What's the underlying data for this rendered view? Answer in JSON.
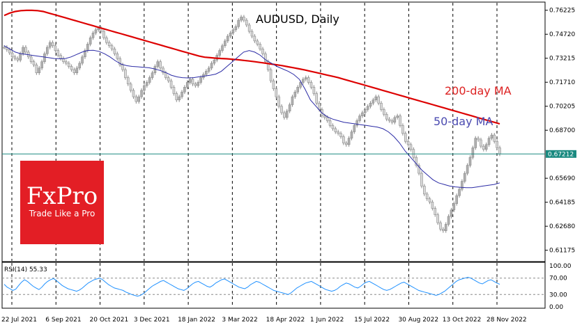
{
  "chart_data": {
    "type": "line",
    "title": "AUDUSD, Daily",
    "x_tick_labels": [
      "22 Jul 2021",
      "6 Sep 2021",
      "20 Oct 2021",
      "3 Dec 2021",
      "18 Jan 2022",
      "3 Mar 2022",
      "18 Apr 2022",
      "1 Jun 2022",
      "15 Jul 2022",
      "30 Aug 2022",
      "13 Oct 2022",
      "28 Nov 2022"
    ],
    "y_tick_labels": [
      "0.76225",
      "0.74720",
      "0.73215",
      "0.71710",
      "0.70205",
      "0.68700",
      "0.67212",
      "0.65690",
      "0.64185",
      "0.62680",
      "0.61175"
    ],
    "ylim": [
      0.6055,
      0.7665
    ],
    "current_price": "0.67212",
    "annotations": {
      "ma200": "200-day MA",
      "ma50": "50-day MA"
    },
    "series": [
      {
        "name": "AUDUSD",
        "color": "#7f7f7f",
        "values": [
          0.739,
          0.7375,
          0.7355,
          0.733,
          0.732,
          0.731,
          0.735,
          0.739,
          0.736,
          0.733,
          0.73,
          0.728,
          0.723,
          0.726,
          0.73,
          0.735,
          0.739,
          0.742,
          0.74,
          0.737,
          0.734,
          0.732,
          0.73,
          0.729,
          0.727,
          0.725,
          0.723,
          0.726,
          0.729,
          0.733,
          0.737,
          0.741,
          0.745,
          0.748,
          0.75,
          0.751,
          0.749,
          0.745,
          0.742,
          0.74,
          0.738,
          0.735,
          0.732,
          0.728,
          0.725,
          0.72,
          0.716,
          0.712,
          0.708,
          0.705,
          0.708,
          0.712,
          0.715,
          0.717,
          0.72,
          0.723,
          0.727,
          0.73,
          0.726,
          0.723,
          0.72,
          0.718,
          0.714,
          0.71,
          0.706,
          0.708,
          0.711,
          0.714,
          0.717,
          0.719,
          0.716,
          0.715,
          0.717,
          0.72,
          0.722,
          0.724,
          0.726,
          0.729,
          0.731,
          0.734,
          0.737,
          0.74,
          0.743,
          0.746,
          0.748,
          0.75,
          0.752,
          0.756,
          0.758,
          0.756,
          0.753,
          0.749,
          0.746,
          0.743,
          0.741,
          0.738,
          0.735,
          0.73,
          0.725,
          0.718,
          0.713,
          0.708,
          0.702,
          0.698,
          0.695,
          0.699,
          0.703,
          0.708,
          0.711,
          0.714,
          0.717,
          0.719,
          0.72,
          0.717,
          0.714,
          0.71,
          0.704,
          0.7,
          0.696,
          0.695,
          0.693,
          0.69,
          0.688,
          0.686,
          0.685,
          0.683,
          0.679,
          0.678,
          0.682,
          0.686,
          0.69,
          0.693,
          0.696,
          0.698,
          0.7,
          0.702,
          0.704,
          0.706,
          0.708,
          0.704,
          0.7,
          0.697,
          0.694,
          0.693,
          0.692,
          0.695,
          0.696,
          0.69,
          0.685,
          0.68,
          0.678,
          0.675,
          0.67,
          0.665,
          0.66,
          0.652,
          0.647,
          0.644,
          0.642,
          0.638,
          0.634,
          0.629,
          0.625,
          0.624,
          0.628,
          0.633,
          0.637,
          0.641,
          0.646,
          0.65,
          0.655,
          0.66,
          0.665,
          0.67,
          0.676,
          0.682,
          0.681,
          0.677,
          0.675,
          0.678,
          0.682,
          0.684,
          0.68,
          0.676,
          0.6721
        ]
      },
      {
        "name": "200-day MA",
        "color": "#dd0000",
        "values": [
          0.759,
          0.7605,
          0.7615,
          0.762,
          0.7622,
          0.7622,
          0.762,
          0.7615,
          0.7605,
          0.7595,
          0.7585,
          0.7575,
          0.7565,
          0.7555,
          0.7545,
          0.7535,
          0.7525,
          0.7515,
          0.7505,
          0.7495,
          0.7485,
          0.7475,
          0.7465,
          0.7455,
          0.7445,
          0.7435,
          0.7425,
          0.7415,
          0.7405,
          0.7395,
          0.7385,
          0.7375,
          0.7365,
          0.7355,
          0.7345,
          0.7335,
          0.7328,
          0.7325,
          0.7322,
          0.732,
          0.7318,
          0.7315,
          0.7312,
          0.7308,
          0.7304,
          0.73,
          0.7295,
          0.729,
          0.7285,
          0.728,
          0.7275,
          0.7268,
          0.7262,
          0.7255,
          0.7248,
          0.724,
          0.7232,
          0.7224,
          0.7216,
          0.7208,
          0.72,
          0.719,
          0.718,
          0.717,
          0.716,
          0.715,
          0.714,
          0.713,
          0.712,
          0.711,
          0.71,
          0.709,
          0.708,
          0.707,
          0.706,
          0.705,
          0.704,
          0.703,
          0.702,
          0.701,
          0.7,
          0.699,
          0.698,
          0.697,
          0.696,
          0.695,
          0.694,
          0.693,
          0.692,
          0.691
        ]
      },
      {
        "name": "50-day MA",
        "color": "#2a2aa5",
        "values": [
          0.74,
          0.738,
          0.736,
          0.735,
          0.7345,
          0.734,
          0.7335,
          0.733,
          0.7325,
          0.732,
          0.7318,
          0.732,
          0.733,
          0.7345,
          0.736,
          0.737,
          0.7372,
          0.7365,
          0.735,
          0.733,
          0.7305,
          0.7285,
          0.7275,
          0.727,
          0.7268,
          0.7265,
          0.7262,
          0.7255,
          0.7245,
          0.7232,
          0.7215,
          0.7205,
          0.72,
          0.7198,
          0.72,
          0.7205,
          0.721,
          0.7215,
          0.7222,
          0.724,
          0.727,
          0.73,
          0.733,
          0.736,
          0.737,
          0.736,
          0.734,
          0.731,
          0.729,
          0.727,
          0.7255,
          0.724,
          0.722,
          0.719,
          0.713,
          0.706,
          0.702,
          0.698,
          0.6955,
          0.694,
          0.693,
          0.692,
          0.6915,
          0.691,
          0.6905,
          0.69,
          0.6895,
          0.689,
          0.688,
          0.686,
          0.683,
          0.679,
          0.674,
          0.67,
          0.666,
          0.662,
          0.659,
          0.656,
          0.654,
          0.653,
          0.652,
          0.6515,
          0.6512,
          0.651,
          0.651,
          0.6515,
          0.652,
          0.6525,
          0.653,
          0.654
        ]
      }
    ],
    "rsi": {
      "label": "RSI(14) 55.33",
      "color": "#1e90ff",
      "levels": [
        "70.00",
        "30.00"
      ],
      "tick_labels": [
        "100.00",
        "70.00",
        "30.00",
        "0.00"
      ],
      "ylim": [
        0,
        100
      ],
      "values": [
        55,
        48,
        44,
        40,
        43,
        52,
        60,
        66,
        62,
        56,
        50,
        46,
        42,
        48,
        56,
        62,
        66,
        69,
        64,
        58,
        52,
        48,
        44,
        42,
        40,
        38,
        41,
        46,
        52,
        58,
        62,
        66,
        68,
        70,
        66,
        60,
        54,
        50,
        46,
        44,
        42,
        40,
        36,
        33,
        30,
        28,
        26,
        28,
        32,
        38,
        44,
        50,
        54,
        58,
        62,
        64,
        60,
        56,
        52,
        48,
        44,
        42,
        40,
        44,
        50,
        56,
        60,
        62,
        58,
        54,
        50,
        48,
        52,
        58,
        62,
        66,
        68,
        64,
        60,
        56,
        52,
        48,
        46,
        44,
        48,
        54,
        58,
        62,
        60,
        56,
        52,
        48,
        44,
        40,
        38,
        36,
        34,
        32,
        30,
        34,
        40,
        46,
        50,
        54,
        58,
        60,
        62,
        58,
        54,
        50,
        46,
        42,
        40,
        38,
        40,
        44,
        50,
        54,
        58,
        56,
        52,
        48,
        46,
        50,
        56,
        60,
        62,
        58,
        54,
        50,
        46,
        42,
        40,
        42,
        46,
        50,
        54,
        58,
        60,
        56,
        52,
        48,
        44,
        40,
        38,
        36,
        34,
        32,
        30,
        28,
        30,
        34,
        38,
        44,
        50,
        56,
        62,
        66,
        68,
        70,
        72,
        70,
        66,
        62,
        58,
        56,
        60,
        64,
        66,
        62,
        58,
        55
      ]
    }
  }
}
